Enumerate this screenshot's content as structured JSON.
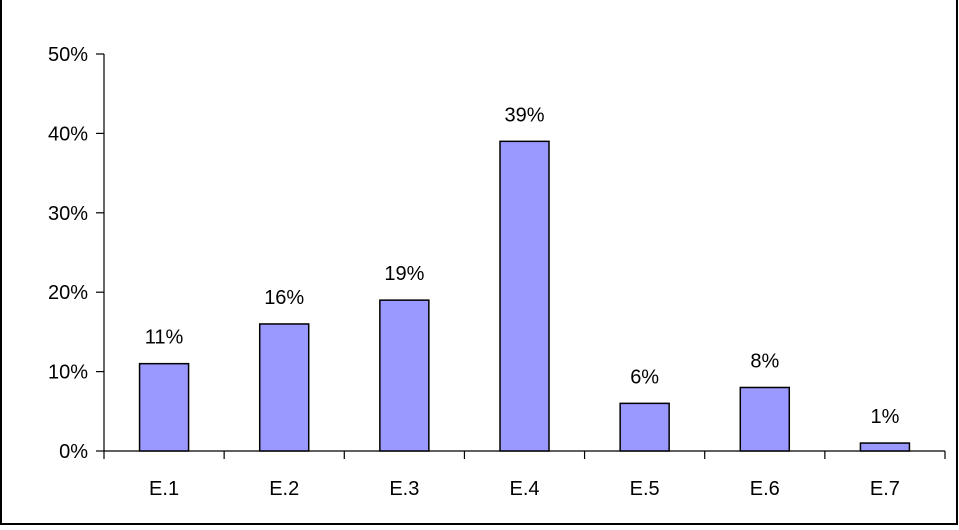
{
  "chart_data": {
    "type": "bar",
    "categories": [
      "E.1",
      "E.2",
      "E.3",
      "E.4",
      "E.5",
      "E.6",
      "E.7"
    ],
    "values": [
      11,
      16,
      19,
      39,
      6,
      8,
      1
    ],
    "data_labels": [
      "11%",
      "16%",
      "19%",
      "39%",
      "6%",
      "8%",
      "1%"
    ],
    "ylim": [
      0,
      50
    ],
    "yticks": [
      0,
      10,
      20,
      30,
      40,
      50
    ],
    "ytick_labels": [
      "0%",
      "10%",
      "20%",
      "30%",
      "40%",
      "50%"
    ],
    "bar_color": "#9999ff",
    "bar_edge_color": "#000000",
    "gridlines": false,
    "legend": false
  }
}
